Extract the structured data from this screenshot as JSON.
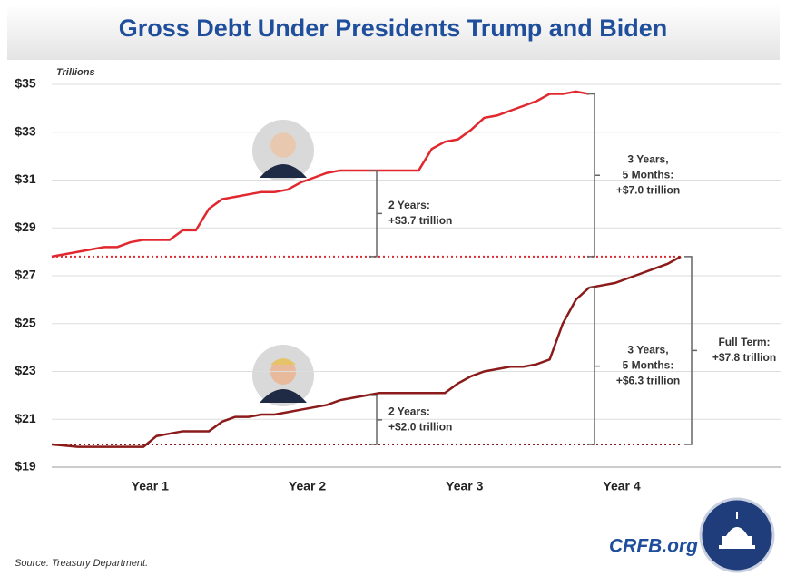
{
  "chart_data": {
    "type": "line",
    "title": "Gross Debt Under Presidents Trump and Biden",
    "y_label": "Trillions",
    "source": "Source: Treasury Department.",
    "brand": "CRFB.org",
    "x": [
      0,
      1,
      2,
      3,
      4,
      5,
      6,
      7,
      8,
      9,
      10,
      11,
      12,
      13,
      14,
      15,
      16,
      17,
      18,
      19,
      20,
      21,
      22,
      23,
      24,
      25,
      26,
      27,
      28,
      29,
      30,
      31,
      32,
      33,
      34,
      35,
      36,
      37,
      38,
      39,
      40,
      41,
      42,
      43,
      44,
      45,
      46,
      47,
      48
    ],
    "xlim": [
      0,
      48
    ],
    "xticks": [
      {
        "value": 7.5,
        "label": "Year 1"
      },
      {
        "value": 19.5,
        "label": "Year 2"
      },
      {
        "value": 31.5,
        "label": "Year 3"
      },
      {
        "value": 43.5,
        "label": "Year 4"
      }
    ],
    "ylim": [
      19,
      35
    ],
    "yticks": [
      {
        "value": 19,
        "label": "$19"
      },
      {
        "value": 21,
        "label": "$21"
      },
      {
        "value": 23,
        "label": "$23"
      },
      {
        "value": 25,
        "label": "$25"
      },
      {
        "value": 27,
        "label": "$27"
      },
      {
        "value": 29,
        "label": "$29"
      },
      {
        "value": 31,
        "label": "$31"
      },
      {
        "value": 33,
        "label": "$33"
      },
      {
        "value": 35,
        "label": "$35"
      }
    ],
    "grid": true,
    "series": [
      {
        "name": "Biden",
        "color": "#e0282e",
        "values": [
          27.8,
          27.9,
          28.0,
          28.1,
          28.2,
          28.2,
          28.4,
          28.5,
          28.5,
          28.5,
          28.9,
          28.9,
          29.8,
          30.2,
          30.3,
          30.4,
          30.5,
          30.5,
          30.6,
          30.9,
          31.1,
          31.3,
          31.4,
          31.4,
          31.4,
          31.4,
          31.4,
          31.4,
          31.4,
          32.3,
          32.6,
          32.7,
          33.1,
          33.6,
          33.7,
          33.9,
          34.1,
          34.3,
          34.6,
          34.6,
          34.7,
          34.6,
          null,
          null,
          null,
          null,
          null,
          null,
          null
        ]
      },
      {
        "name": "Trump",
        "color": "#8b1a1a",
        "values": [
          19.95,
          19.9,
          19.85,
          19.85,
          19.85,
          19.85,
          19.85,
          19.85,
          20.3,
          20.4,
          20.5,
          20.5,
          20.5,
          20.9,
          21.1,
          21.1,
          21.2,
          21.2,
          21.3,
          21.4,
          21.5,
          21.6,
          21.8,
          21.9,
          22.0,
          22.1,
          22.1,
          22.1,
          22.1,
          22.1,
          22.1,
          22.5,
          22.8,
          23.0,
          23.1,
          23.2,
          23.2,
          23.3,
          23.5,
          25.0,
          26.0,
          26.5,
          26.6,
          26.7,
          26.9,
          27.1,
          27.3,
          27.5,
          27.8
        ]
      }
    ],
    "annotations": [
      {
        "lines": [
          "2 Years:",
          "+$3.7 trillion"
        ]
      },
      {
        "lines": [
          "3 Years,",
          "5 Months:",
          "+$7.0 trillion"
        ]
      },
      {
        "lines": [
          "2 Years:",
          "+$2.0 trillion"
        ]
      },
      {
        "lines": [
          "3 Years,",
          "5 Months:",
          "+$6.3 trillion"
        ]
      },
      {
        "lines": [
          "Full Term:",
          "+$7.8 trillion"
        ]
      }
    ]
  }
}
